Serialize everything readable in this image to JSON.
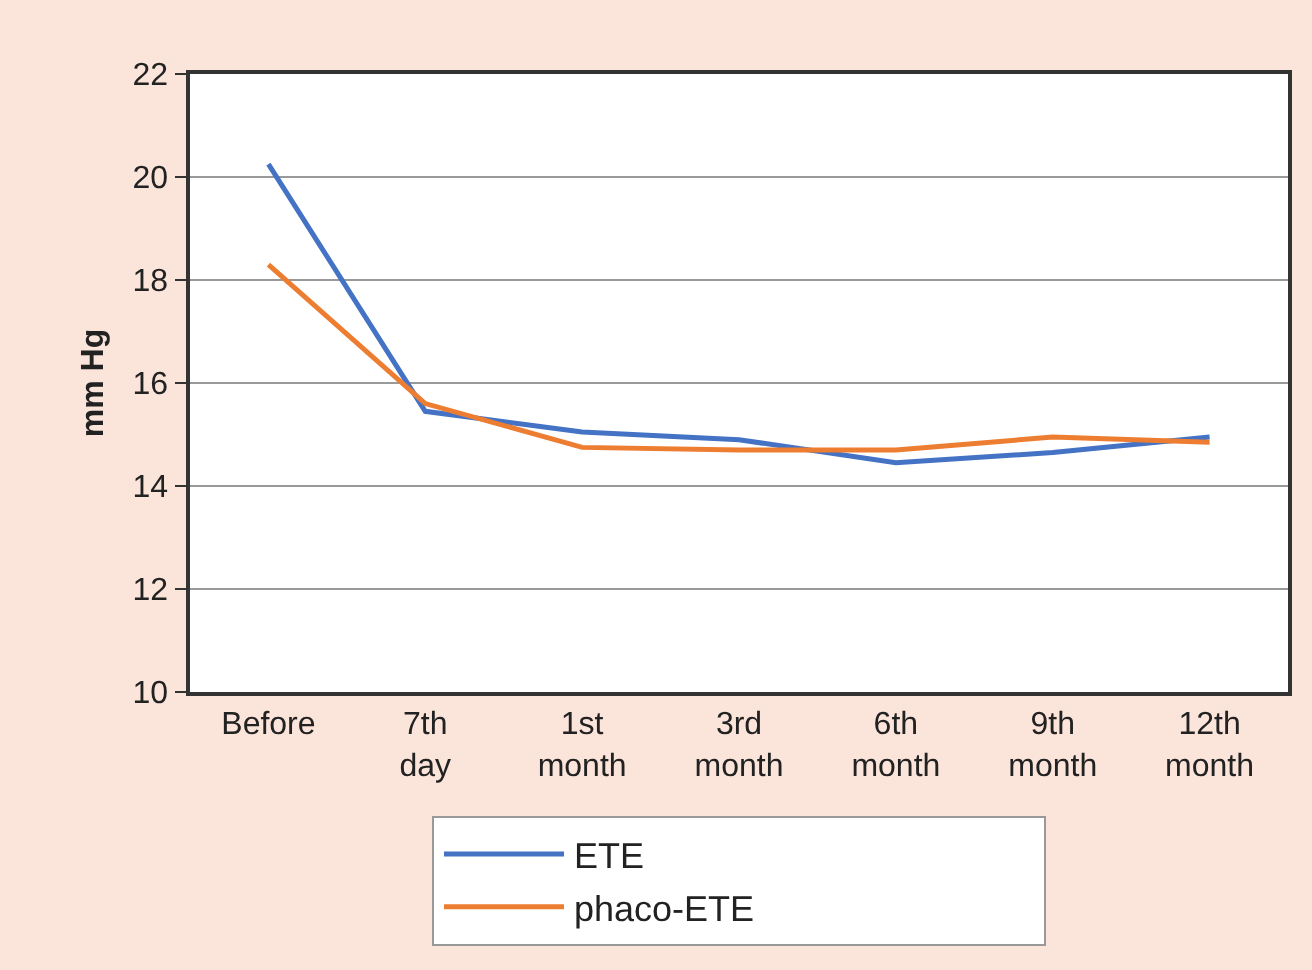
{
  "chart_data": {
    "type": "line",
    "ylabel": "mm Hg",
    "categories": [
      "Before",
      "7th day",
      "1st month",
      "3rd month",
      "6th month",
      "9th month",
      "12th month"
    ],
    "series": [
      {
        "name": "ETE",
        "color": "#4472c4",
        "values": [
          20.25,
          15.45,
          15.05,
          14.9,
          14.45,
          14.65,
          14.95
        ]
      },
      {
        "name": "phaco-ETE",
        "color": "#ed7d31",
        "values": [
          18.3,
          15.6,
          14.75,
          14.7,
          14.7,
          14.95,
          14.85
        ]
      }
    ],
    "ylim": [
      10,
      22
    ],
    "yticks": [
      10,
      12,
      14,
      16,
      18,
      20,
      22
    ],
    "grid": "y",
    "legend": "bottom",
    "marker": "none",
    "line_style": "solid"
  }
}
